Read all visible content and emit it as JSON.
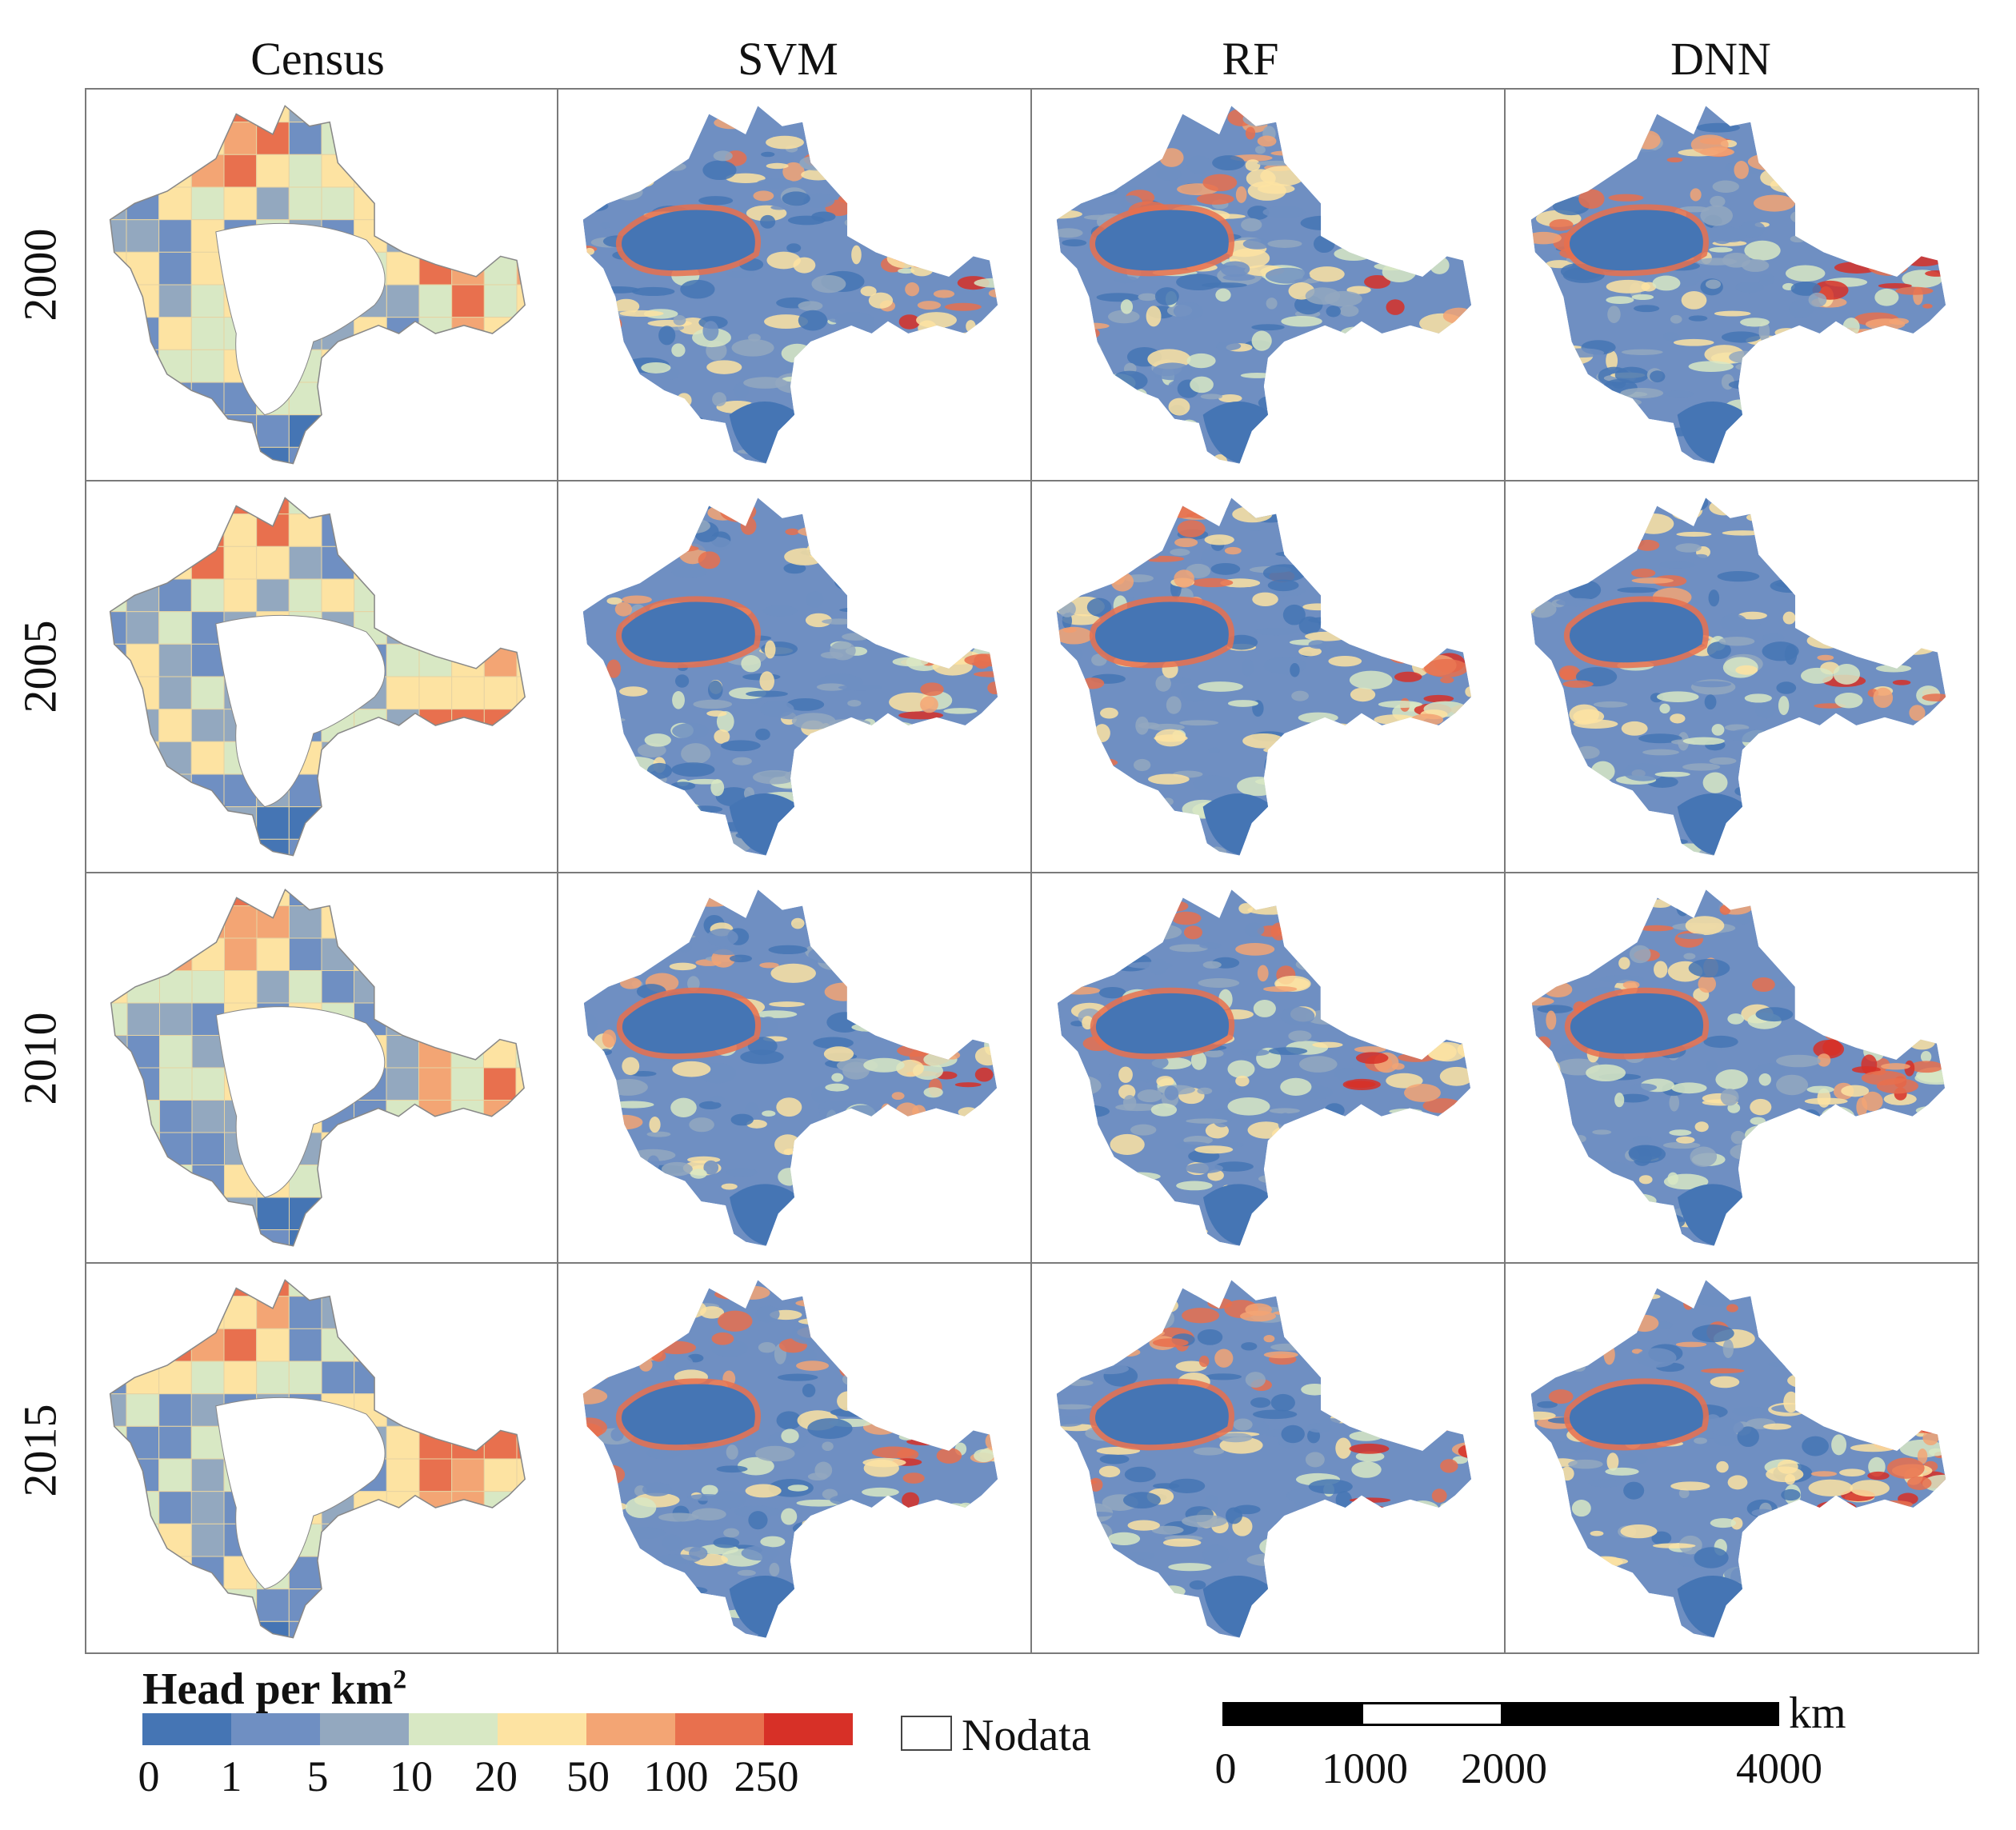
{
  "columns": [
    "Census",
    "SVM",
    "RF",
    "DNN"
  ],
  "rows": [
    "2000",
    "2005",
    "2010",
    "2015"
  ],
  "legend": {
    "title": "Head per km",
    "title_superscript": "2",
    "classes": [
      {
        "color": "#4575b4"
      },
      {
        "color": "#6f8fc2"
      },
      {
        "color": "#93a8bf"
      },
      {
        "color": "#d8e8c4"
      },
      {
        "color": "#fde3a2"
      },
      {
        "color": "#f3a574"
      },
      {
        "color": "#e8704e"
      },
      {
        "color": "#d73027"
      }
    ],
    "ticks": [
      "0",
      "1",
      "5",
      "10",
      "20",
      "50",
      "100",
      "250"
    ],
    "nodata_label": "Nodata"
  },
  "scale_bar": {
    "unit": "km",
    "ticks": [
      "0",
      "1000",
      "2000",
      "4000"
    ],
    "tick_values": [
      0,
      1000,
      2000,
      4000
    ]
  },
  "colors": {
    "dark_blue": "#4575b4",
    "blue": "#6f8fc2",
    "grey_blue": "#93a8bf",
    "pale_green": "#d8e8c4",
    "pale_yellow": "#fde3a2",
    "orange": "#f3a574",
    "red_orange": "#e8704e",
    "red": "#d73027"
  }
}
